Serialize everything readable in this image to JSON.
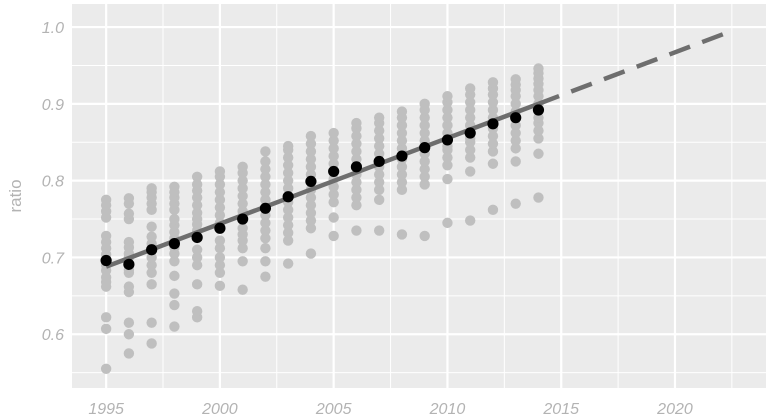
{
  "chart_data": {
    "type": "scatter",
    "title": "",
    "xlabel": "",
    "ylabel": "ratio",
    "xlim": [
      1993.5,
      2024
    ],
    "ylim": [
      0.53,
      1.03
    ],
    "x_ticks": [
      1995,
      2000,
      2005,
      2010,
      2015,
      2020
    ],
    "y_ticks": [
      0.6,
      0.7,
      0.8,
      0.9,
      1.0
    ],
    "x_tick_labels": [
      "1995",
      "2000",
      "2005",
      "2010",
      "2015",
      "2020"
    ],
    "y_tick_labels": [
      "0.6",
      "0.7",
      "0.8",
      "0.9",
      "1.0"
    ],
    "grid": true,
    "legend": "none",
    "colors": {
      "panel": "#ebebeb",
      "grid": "#ffffff",
      "points": "#bfbfbf",
      "means": "#000000",
      "fit_line": "#6e6e6e",
      "projection": "#6e6e6e"
    },
    "series": [
      {
        "kind": "points",
        "points": [
          [
            1995,
            0.555
          ],
          [
            1995,
            0.607
          ],
          [
            1995,
            0.622
          ],
          [
            1995,
            0.662
          ],
          [
            1995,
            0.668
          ],
          [
            1995,
            0.674
          ],
          [
            1995,
            0.683
          ],
          [
            1995,
            0.69
          ],
          [
            1995,
            0.704
          ],
          [
            1995,
            0.712
          ],
          [
            1995,
            0.72
          ],
          [
            1995,
            0.728
          ],
          [
            1995,
            0.752
          ],
          [
            1995,
            0.76
          ],
          [
            1995,
            0.768
          ],
          [
            1995,
            0.775
          ],
          [
            1996,
            0.575
          ],
          [
            1996,
            0.6
          ],
          [
            1996,
            0.615
          ],
          [
            1996,
            0.655
          ],
          [
            1996,
            0.662
          ],
          [
            1996,
            0.68
          ],
          [
            1996,
            0.684
          ],
          [
            1996,
            0.7
          ],
          [
            1996,
            0.705
          ],
          [
            1996,
            0.713
          ],
          [
            1996,
            0.72
          ],
          [
            1996,
            0.75
          ],
          [
            1996,
            0.757
          ],
          [
            1996,
            0.77
          ],
          [
            1996,
            0.777
          ],
          [
            1997,
            0.588
          ],
          [
            1997,
            0.615
          ],
          [
            1997,
            0.665
          ],
          [
            1997,
            0.68
          ],
          [
            1997,
            0.69
          ],
          [
            1997,
            0.7
          ],
          [
            1997,
            0.71
          ],
          [
            1997,
            0.718
          ],
          [
            1997,
            0.727
          ],
          [
            1997,
            0.74
          ],
          [
            1997,
            0.762
          ],
          [
            1997,
            0.77
          ],
          [
            1997,
            0.778
          ],
          [
            1997,
            0.785
          ],
          [
            1997,
            0.79
          ],
          [
            1998,
            0.61
          ],
          [
            1998,
            0.638
          ],
          [
            1998,
            0.653
          ],
          [
            1998,
            0.676
          ],
          [
            1998,
            0.695
          ],
          [
            1998,
            0.705
          ],
          [
            1998,
            0.713
          ],
          [
            1998,
            0.725
          ],
          [
            1998,
            0.733
          ],
          [
            1998,
            0.742
          ],
          [
            1998,
            0.75
          ],
          [
            1998,
            0.762
          ],
          [
            1998,
            0.77
          ],
          [
            1998,
            0.778
          ],
          [
            1998,
            0.785
          ],
          [
            1998,
            0.792
          ],
          [
            1999,
            0.622
          ],
          [
            1999,
            0.63
          ],
          [
            1999,
            0.665
          ],
          [
            1999,
            0.69
          ],
          [
            1999,
            0.7
          ],
          [
            1999,
            0.71
          ],
          [
            1999,
            0.735
          ],
          [
            1999,
            0.743
          ],
          [
            1999,
            0.75
          ],
          [
            1999,
            0.758
          ],
          [
            1999,
            0.768
          ],
          [
            1999,
            0.778
          ],
          [
            1999,
            0.787
          ],
          [
            1999,
            0.795
          ],
          [
            1999,
            0.805
          ],
          [
            2000,
            0.663
          ],
          [
            2000,
            0.68
          ],
          [
            2000,
            0.69
          ],
          [
            2000,
            0.7
          ],
          [
            2000,
            0.712
          ],
          [
            2000,
            0.722
          ],
          [
            2000,
            0.745
          ],
          [
            2000,
            0.755
          ],
          [
            2000,
            0.765
          ],
          [
            2000,
            0.775
          ],
          [
            2000,
            0.785
          ],
          [
            2000,
            0.795
          ],
          [
            2000,
            0.805
          ],
          [
            2000,
            0.812
          ],
          [
            2001,
            0.658
          ],
          [
            2001,
            0.695
          ],
          [
            2001,
            0.712
          ],
          [
            2001,
            0.722
          ],
          [
            2001,
            0.73
          ],
          [
            2001,
            0.738
          ],
          [
            2001,
            0.76
          ],
          [
            2001,
            0.77
          ],
          [
            2001,
            0.78
          ],
          [
            2001,
            0.79
          ],
          [
            2001,
            0.8
          ],
          [
            2001,
            0.81
          ],
          [
            2001,
            0.818
          ],
          [
            2002,
            0.675
          ],
          [
            2002,
            0.695
          ],
          [
            2002,
            0.712
          ],
          [
            2002,
            0.725
          ],
          [
            2002,
            0.735
          ],
          [
            2002,
            0.745
          ],
          [
            2002,
            0.755
          ],
          [
            2002,
            0.775
          ],
          [
            2002,
            0.785
          ],
          [
            2002,
            0.795
          ],
          [
            2002,
            0.805
          ],
          [
            2002,
            0.815
          ],
          [
            2002,
            0.825
          ],
          [
            2002,
            0.838
          ],
          [
            2003,
            0.692
          ],
          [
            2003,
            0.722
          ],
          [
            2003,
            0.732
          ],
          [
            2003,
            0.742
          ],
          [
            2003,
            0.752
          ],
          [
            2003,
            0.762
          ],
          [
            2003,
            0.772
          ],
          [
            2003,
            0.79
          ],
          [
            2003,
            0.8
          ],
          [
            2003,
            0.81
          ],
          [
            2003,
            0.82
          ],
          [
            2003,
            0.83
          ],
          [
            2003,
            0.84
          ],
          [
            2003,
            0.845
          ],
          [
            2004,
            0.705
          ],
          [
            2004,
            0.738
          ],
          [
            2004,
            0.748
          ],
          [
            2004,
            0.758
          ],
          [
            2004,
            0.768
          ],
          [
            2004,
            0.778
          ],
          [
            2004,
            0.788
          ],
          [
            2004,
            0.808
          ],
          [
            2004,
            0.818
          ],
          [
            2004,
            0.828
          ],
          [
            2004,
            0.838
          ],
          [
            2004,
            0.848
          ],
          [
            2004,
            0.858
          ],
          [
            2005,
            0.728
          ],
          [
            2005,
            0.752
          ],
          [
            2005,
            0.772
          ],
          [
            2005,
            0.782
          ],
          [
            2005,
            0.792
          ],
          [
            2005,
            0.802
          ],
          [
            2005,
            0.822
          ],
          [
            2005,
            0.832
          ],
          [
            2005,
            0.842
          ],
          [
            2005,
            0.852
          ],
          [
            2005,
            0.862
          ],
          [
            2006,
            0.735
          ],
          [
            2006,
            0.768
          ],
          [
            2006,
            0.778
          ],
          [
            2006,
            0.788
          ],
          [
            2006,
            0.798
          ],
          [
            2006,
            0.808
          ],
          [
            2006,
            0.828
          ],
          [
            2006,
            0.838
          ],
          [
            2006,
            0.848
          ],
          [
            2006,
            0.858
          ],
          [
            2006,
            0.868
          ],
          [
            2006,
            0.875
          ],
          [
            2007,
            0.735
          ],
          [
            2007,
            0.775
          ],
          [
            2007,
            0.788
          ],
          [
            2007,
            0.798
          ],
          [
            2007,
            0.808
          ],
          [
            2007,
            0.818
          ],
          [
            2007,
            0.835
          ],
          [
            2007,
            0.845
          ],
          [
            2007,
            0.855
          ],
          [
            2007,
            0.865
          ],
          [
            2007,
            0.875
          ],
          [
            2007,
            0.882
          ],
          [
            2008,
            0.73
          ],
          [
            2008,
            0.788
          ],
          [
            2008,
            0.798
          ],
          [
            2008,
            0.808
          ],
          [
            2008,
            0.818
          ],
          [
            2008,
            0.828
          ],
          [
            2008,
            0.842
          ],
          [
            2008,
            0.852
          ],
          [
            2008,
            0.862
          ],
          [
            2008,
            0.872
          ],
          [
            2008,
            0.882
          ],
          [
            2008,
            0.89
          ],
          [
            2009,
            0.728
          ],
          [
            2009,
            0.795
          ],
          [
            2009,
            0.805
          ],
          [
            2009,
            0.815
          ],
          [
            2009,
            0.825
          ],
          [
            2009,
            0.835
          ],
          [
            2009,
            0.852
          ],
          [
            2009,
            0.862
          ],
          [
            2009,
            0.872
          ],
          [
            2009,
            0.882
          ],
          [
            2009,
            0.892
          ],
          [
            2009,
            0.9
          ],
          [
            2010,
            0.745
          ],
          [
            2010,
            0.802
          ],
          [
            2010,
            0.82
          ],
          [
            2010,
            0.83
          ],
          [
            2010,
            0.84
          ],
          [
            2010,
            0.845
          ],
          [
            2010,
            0.862
          ],
          [
            2010,
            0.872
          ],
          [
            2010,
            0.882
          ],
          [
            2010,
            0.892
          ],
          [
            2010,
            0.902
          ],
          [
            2010,
            0.91
          ],
          [
            2011,
            0.748
          ],
          [
            2011,
            0.812
          ],
          [
            2011,
            0.83
          ],
          [
            2011,
            0.84
          ],
          [
            2011,
            0.85
          ],
          [
            2011,
            0.855
          ],
          [
            2011,
            0.872
          ],
          [
            2011,
            0.882
          ],
          [
            2011,
            0.892
          ],
          [
            2011,
            0.902
          ],
          [
            2011,
            0.912
          ],
          [
            2011,
            0.92
          ],
          [
            2012,
            0.762
          ],
          [
            2012,
            0.822
          ],
          [
            2012,
            0.838
          ],
          [
            2012,
            0.848
          ],
          [
            2012,
            0.858
          ],
          [
            2012,
            0.868
          ],
          [
            2012,
            0.882
          ],
          [
            2012,
            0.892
          ],
          [
            2012,
            0.902
          ],
          [
            2012,
            0.912
          ],
          [
            2012,
            0.92
          ],
          [
            2012,
            0.928
          ],
          [
            2013,
            0.77
          ],
          [
            2013,
            0.825
          ],
          [
            2013,
            0.842
          ],
          [
            2013,
            0.852
          ],
          [
            2013,
            0.862
          ],
          [
            2013,
            0.872
          ],
          [
            2013,
            0.89
          ],
          [
            2013,
            0.9
          ],
          [
            2013,
            0.91
          ],
          [
            2013,
            0.918
          ],
          [
            2013,
            0.925
          ],
          [
            2013,
            0.932
          ],
          [
            2014,
            0.778
          ],
          [
            2014,
            0.835
          ],
          [
            2014,
            0.855
          ],
          [
            2014,
            0.865
          ],
          [
            2014,
            0.875
          ],
          [
            2014,
            0.882
          ],
          [
            2014,
            0.9
          ],
          [
            2014,
            0.91
          ],
          [
            2014,
            0.918
          ],
          [
            2014,
            0.926
          ],
          [
            2014,
            0.933
          ],
          [
            2014,
            0.94
          ],
          [
            2014,
            0.946
          ]
        ]
      },
      {
        "kind": "means",
        "x": [
          1995,
          1996,
          1997,
          1998,
          1999,
          2000,
          2001,
          2002,
          2003,
          2004,
          2005,
          2006,
          2007,
          2008,
          2009,
          2010,
          2011,
          2012,
          2013,
          2014
        ],
        "y": [
          0.696,
          0.691,
          0.71,
          0.718,
          0.726,
          0.738,
          0.75,
          0.764,
          0.779,
          0.799,
          0.812,
          0.818,
          0.825,
          0.832,
          0.843,
          0.853,
          0.862,
          0.874,
          0.882,
          0.892
        ]
      },
      {
        "kind": "fit_line",
        "x": [
          1995,
          2014
        ],
        "y": [
          0.688,
          0.9
        ]
      },
      {
        "kind": "projection",
        "x": [
          2014,
          2022.5
        ],
        "y": [
          0.9,
          0.995
        ]
      }
    ]
  }
}
